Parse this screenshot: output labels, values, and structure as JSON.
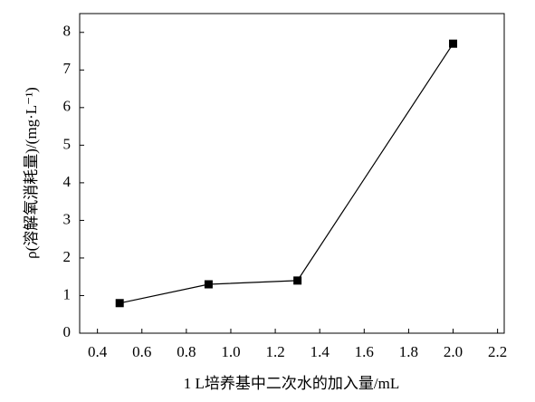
{
  "chart_data": {
    "type": "line",
    "xlabel": "1 L培养基中二次水的加入量/mL",
    "ylabel": "ρ(溶解氧消耗量)/(mg·L⁻¹)",
    "x": [
      0.5,
      0.9,
      1.3,
      2.0
    ],
    "series": [
      {
        "color": "#000000",
        "values": [
          0.8,
          1.3,
          1.4,
          7.7
        ]
      }
    ],
    "xlim": [
      0.32,
      2.23
    ],
    "xticks": [
      0.4,
      0.6,
      0.8,
      {
        "value": 1.0,
        "label": "1.0"
      },
      1.2,
      1.4,
      1.6,
      1.8,
      {
        "value": 2.0,
        "label": "2.0"
      },
      2.2
    ],
    "ylim": [
      0,
      8.5
    ],
    "yticks": [
      0,
      1,
      2,
      3,
      4,
      5,
      6,
      7,
      8
    ],
    "grid": false
  }
}
